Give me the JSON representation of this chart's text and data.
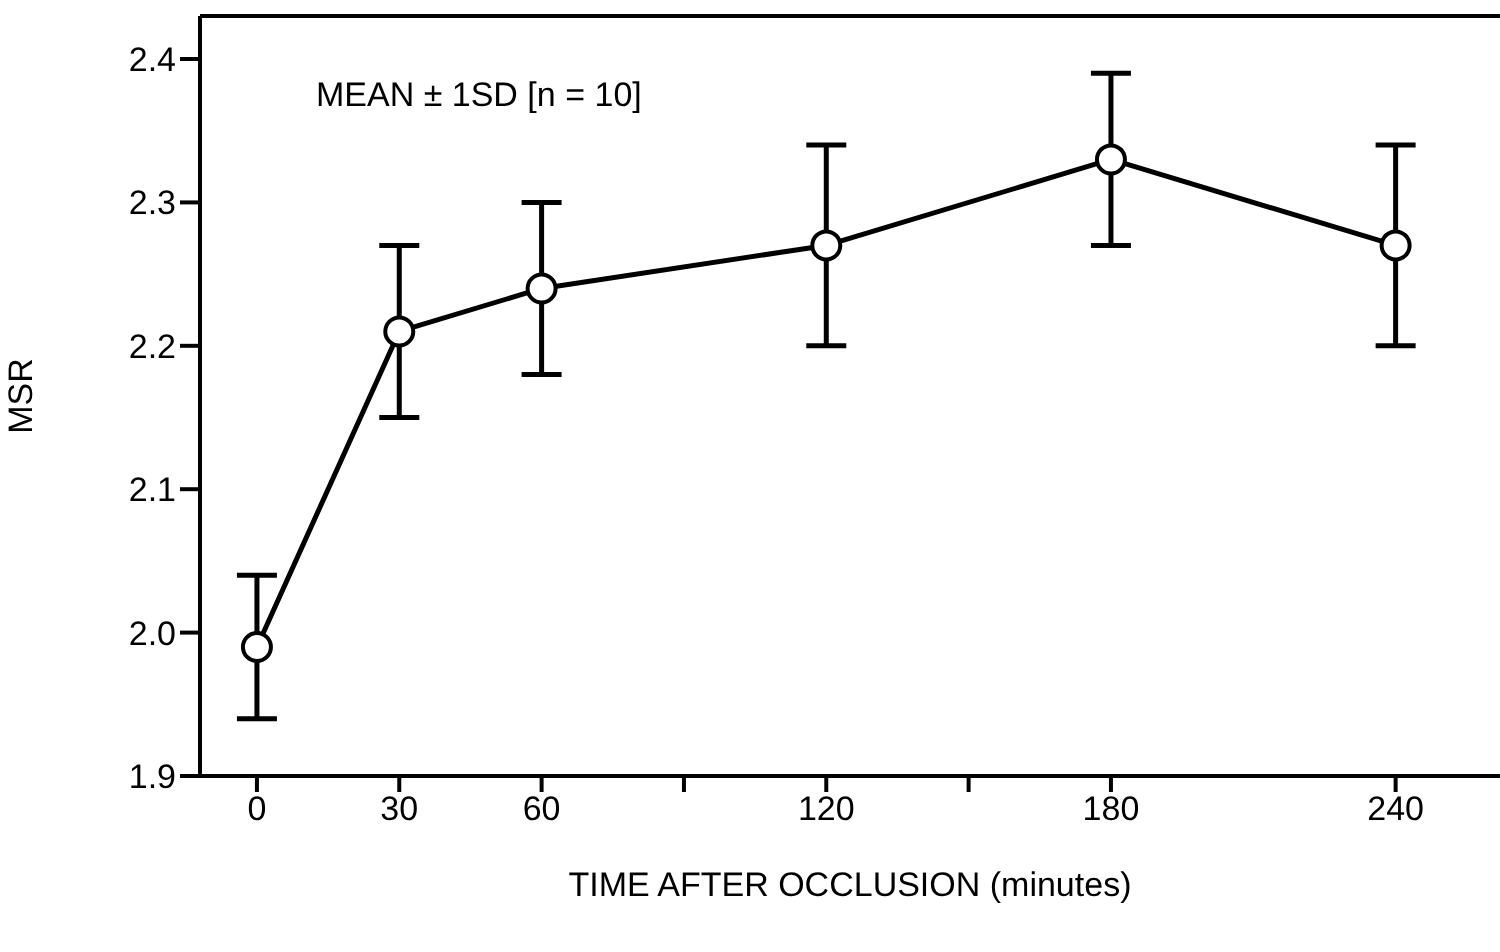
{
  "chart_data": {
    "type": "line",
    "xlabel": "TIME AFTER OCCLUSION (minutes)",
    "ylabel": "MSR",
    "annotations": [
      "MEAN ± 1SD [n = 10]"
    ],
    "x": [
      0,
      30,
      60,
      120,
      180,
      240
    ],
    "series": [
      {
        "color": "#000000",
        "values": [
          1.99,
          2.21,
          2.24,
          2.27,
          2.33,
          2.27
        ],
        "errors": [
          0.05,
          0.06,
          0.06,
          0.07,
          0.06,
          0.07
        ]
      }
    ],
    "xlim": [
      -12,
      262
    ],
    "xticks": [
      0,
      30,
      60,
      {
        "value": 90,
        "label": null
      },
      120,
      {
        "value": 150,
        "label": null
      },
      180,
      240
    ],
    "ylim": [
      1.9,
      2.43
    ],
    "yticks": [
      1.9,
      {
        "value": 2.0,
        "label": "2.0"
      },
      2.1,
      2.2,
      2.3,
      2.4
    ],
    "marker": "circle",
    "line_style": "solid",
    "grid": false,
    "legend": false
  }
}
